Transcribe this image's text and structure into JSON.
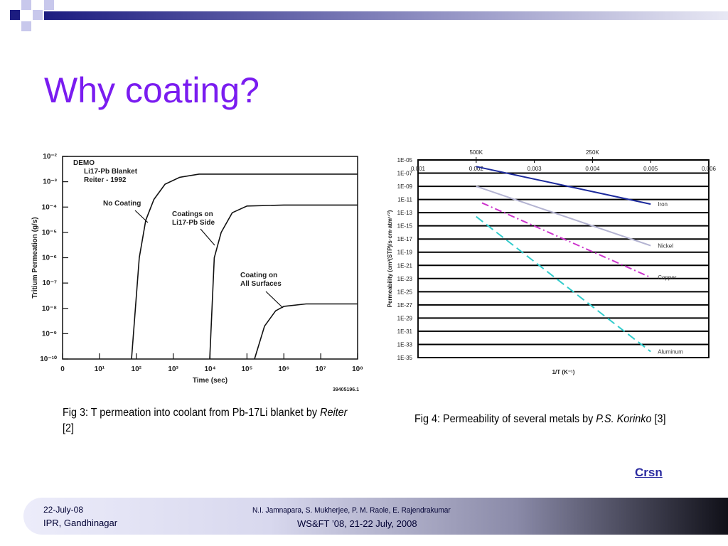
{
  "title": "Why coating?",
  "chart_data": [
    {
      "type": "line",
      "xlog": true,
      "ylog": true,
      "xlim": [
        1,
        100000000
      ],
      "ylim": [
        1e-10,
        0.01
      ],
      "xticks": [
        {
          "value": 1,
          "label": "0"
        },
        {
          "value": 10,
          "label": "10¹"
        },
        {
          "value": 100,
          "label": "10²"
        },
        {
          "value": 1000,
          "label": "10³"
        },
        {
          "value": 10000,
          "label": "10⁴"
        },
        {
          "value": 100000,
          "label": "10⁵"
        },
        {
          "value": 1000000,
          "label": "10⁶"
        },
        {
          "value": 10000000,
          "label": "10⁷"
        },
        {
          "value": 100000000,
          "label": "10⁸"
        }
      ],
      "yticks": [
        {
          "value": 1e-10,
          "label": "10⁻¹⁰"
        },
        {
          "value": 1e-09,
          "label": "10⁻⁹"
        },
        {
          "value": 1e-08,
          "label": "10⁻⁸"
        },
        {
          "value": 1e-07,
          "label": "10⁻⁷"
        },
        {
          "value": 1e-06,
          "label": "10⁻⁶"
        },
        {
          "value": 1e-05,
          "label": "10⁻⁵"
        },
        {
          "value": 0.0001,
          "label": "10⁻⁴"
        },
        {
          "value": 0.001,
          "label": "10⁻³"
        },
        {
          "value": 0.01,
          "label": "10⁻²"
        }
      ],
      "grid": false,
      "xaxis_position": "bottom",
      "xlabel": "Time (sec)",
      "ylabel": "Tritium Permeation (g/s)",
      "annotations": [
        "DEMO",
        "Li17-Pb Blanket",
        "Reiter - 1992",
        "No Coating",
        "Coatings on",
        "Li17-Pb Side",
        "Coating on",
        "All Surfaces",
        "39405196.1"
      ],
      "series": [
        {
          "color": "#111111",
          "dash": "solid",
          "x": [
            74,
            120,
            180,
            300,
            600,
            1500,
            5000,
            100000000
          ],
          "values": [
            1e-10,
            1e-06,
            3e-05,
            0.0002,
            0.0008,
            0.0015,
            0.002,
            0.002
          ]
        },
        {
          "color": "#111111",
          "dash": "solid",
          "x": [
            9800,
            13000,
            20000,
            40000,
            100000,
            1000000,
            100000000
          ],
          "values": [
            1e-10,
            1e-06,
            1e-05,
            6e-05,
            0.00011,
            0.00012,
            0.00012
          ]
        },
        {
          "color": "#111111",
          "dash": "solid",
          "x": [
            160000,
            300000,
            600000,
            1000000,
            4000000,
            100000000
          ],
          "values": [
            1e-10,
            2e-09,
            8e-09,
            1.2e-08,
            1.5e-08,
            1.5e-08
          ]
        }
      ]
    },
    {
      "type": "line",
      "xlog": false,
      "ylog": true,
      "xlim": [
        0.001,
        0.006
      ],
      "ylim": [
        1e-35,
        1e-05
      ],
      "xticks": [
        0.001,
        0.002,
        0.003,
        0.004,
        0.005,
        0.006
      ],
      "x2ticks": [
        {
          "value": 0.002,
          "label": "500K"
        },
        {
          "value": 0.004,
          "label": "250K"
        }
      ],
      "yticks": [
        {
          "value": 1e-05,
          "label": "1E-05"
        },
        {
          "value": 1e-07,
          "label": "1E-07"
        },
        {
          "value": 1e-09,
          "label": "1E-09"
        },
        {
          "value": 1e-11,
          "label": "1E-11"
        },
        {
          "value": 1e-13,
          "label": "1E-13"
        },
        {
          "value": 1e-15,
          "label": "1E-15"
        },
        {
          "value": 1e-17,
          "label": "1E-17"
        },
        {
          "value": 1e-19,
          "label": "1E-19"
        },
        {
          "value": 1e-21,
          "label": "1E-21"
        },
        {
          "value": 1e-23,
          "label": "1E-23"
        },
        {
          "value": 1e-25,
          "label": "1E-25"
        },
        {
          "value": 1e-27,
          "label": "1E-27"
        },
        {
          "value": 1e-29,
          "label": "1E-29"
        },
        {
          "value": 1e-31,
          "label": "1E-31"
        },
        {
          "value": 1e-33,
          "label": "1E-33"
        },
        {
          "value": 1e-35,
          "label": "1E-35"
        }
      ],
      "grid": true,
      "xaxis_position": "top",
      "xlabel": "1/T (K⁻¹)",
      "ylabel": "Permeability (cm³(STP)/s·cm·atm¹ᐟ²)",
      "series": [
        {
          "name": "Iron",
          "color": "#1c2a9c",
          "dash": "solid",
          "x": [
            0.002,
            0.005
          ],
          "values": [
            1e-06,
            2e-12
          ]
        },
        {
          "name": "Nickel",
          "color": "#b4b4d2",
          "dash": "solid",
          "x": [
            0.002,
            0.005
          ],
          "values": [
            1e-09,
            1e-18
          ]
        },
        {
          "name": "Copper",
          "color": "#cc33cc",
          "dash": "dashdot",
          "x": [
            0.0021,
            0.005
          ],
          "values": [
            3e-12,
            1.5e-23
          ]
        },
        {
          "name": "Aluminum",
          "color": "#33cccc",
          "dash": "dashed",
          "x": [
            0.002,
            0.005
          ],
          "values": [
            2.5e-14,
            8e-35
          ]
        }
      ]
    }
  ],
  "captions": [
    {
      "parts": [
        "Fig 3: T permeation into coolant from Pb-17Li blanket by ",
        "Reiter",
        " [2]"
      ]
    },
    {
      "parts": [
        "Fig 4: Permeability of several metals by ",
        "P.S. Korinko",
        " [3]"
      ]
    }
  ],
  "link": "Crsn",
  "footer": {
    "date": "22-July-08",
    "place": "IPR, Gandhinagar",
    "authors": "N.I. Jamnapara, S. Mukherjee, P. M. Raole, E. Rajendrakumar",
    "event": "WS&FT ’08, 21-22 July, 2008"
  }
}
